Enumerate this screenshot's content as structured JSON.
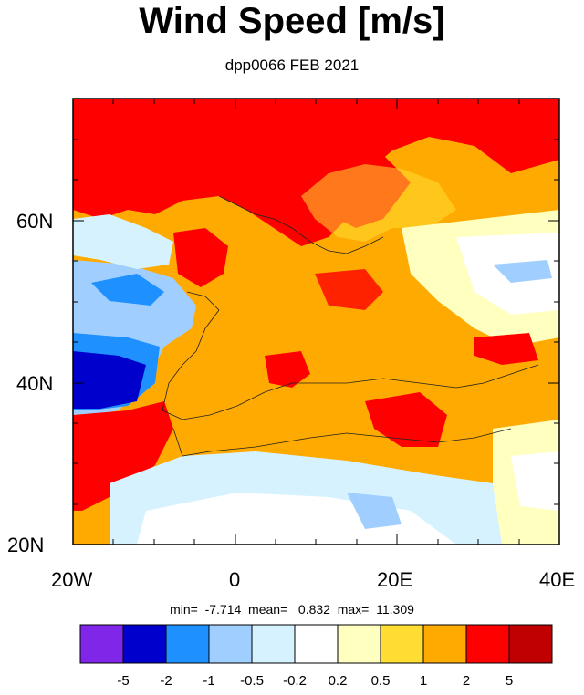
{
  "title": "Wind Speed [m/s]",
  "subtitle": "dpp0066 FEB 2021",
  "map": {
    "x_axis_ticks": [
      "20W",
      "0",
      "20E",
      "40E"
    ],
    "y_axis_ticks": [
      "60N",
      "40N",
      "20N"
    ],
    "lon_range": [
      -20,
      40
    ],
    "lat_range": [
      20,
      75
    ]
  },
  "stats": {
    "text": "min=  -7.714  mean=   0.832  max=  11.309"
  },
  "colorbar": {
    "colors": [
      "#7f26e8",
      "#0000cc",
      "#1e90ff",
      "#a0cfff",
      "#d6f2ff",
      "#ffffff",
      "#ffffc0",
      "#ffdd33",
      "#ffaa00",
      "#ff0000",
      "#c00000"
    ],
    "labels": [
      "-5",
      "-2",
      "-1",
      "-0.5",
      "-0.2",
      "0.2",
      "0.5",
      "1",
      "2",
      "5"
    ]
  }
}
